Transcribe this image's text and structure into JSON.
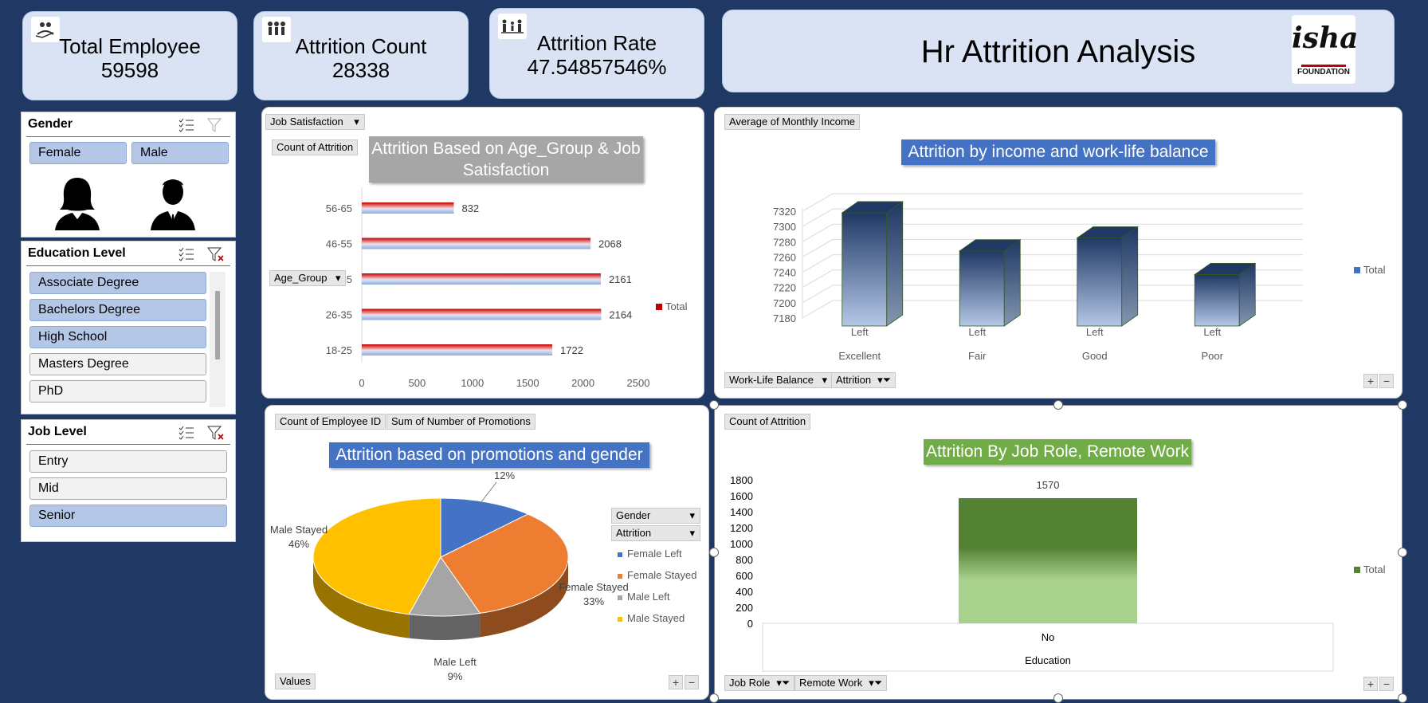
{
  "kpis": [
    {
      "title": "Total Employee",
      "value": "59598"
    },
    {
      "title": "Attrition Count",
      "value": "28338"
    },
    {
      "title": "Attrition Rate",
      "value": "47.54857546%"
    }
  ],
  "header": {
    "title": "Hr Attrition Analysis",
    "logo_text": "isha",
    "logo_sub": "FOUNDATION"
  },
  "slicers": {
    "gender": {
      "title": "Gender",
      "items": [
        {
          "label": "Female",
          "selected": true
        },
        {
          "label": "Male",
          "selected": true
        }
      ]
    },
    "education": {
      "title": "Education Level",
      "items": [
        {
          "label": "Associate Degree",
          "selected": true
        },
        {
          "label": "Bachelors Degree",
          "selected": true
        },
        {
          "label": "High School",
          "selected": true
        },
        {
          "label": "Masters Degree",
          "selected": false
        },
        {
          "label": "PhD",
          "selected": false
        }
      ]
    },
    "joblevel": {
      "title": "Job Level",
      "items": [
        {
          "label": "Entry",
          "selected": false
        },
        {
          "label": "Mid",
          "selected": false
        },
        {
          "label": "Senior",
          "selected": true
        }
      ]
    }
  },
  "chart1": {
    "field_buttons": [
      "Job Satisfaction",
      "Count of Attrition",
      "Age_Group"
    ],
    "title": "Attrition Based on Age_Group & Job Satisfaction",
    "legend": "Total"
  },
  "chart2": {
    "field_buttons": [
      "Average of Monthly Income",
      "Work-Life Balance",
      "Attrition"
    ],
    "title": "Attrition by income and work-life balance",
    "legend": "Total"
  },
  "chart3": {
    "field_buttons": [
      "Count of Employee ID",
      "Sum of Number of Promotions",
      "Gender",
      "Attrition",
      "Values"
    ],
    "title": "Attrition based on promotions and gender"
  },
  "chart4": {
    "field_buttons": [
      "Count of Attrition",
      "Job Role",
      "Remote Work"
    ],
    "title": "Attrition By Job Role, Remote Work",
    "legend": "Total"
  },
  "chart_data": [
    {
      "type": "bar",
      "orientation": "horizontal",
      "categories": [
        "18-25",
        "26-35",
        "36-45",
        "46-55",
        "56-65"
      ],
      "series": [
        {
          "name": "Total",
          "values": [
            1722,
            2164,
            2161,
            2068,
            832
          ]
        }
      ],
      "xlim": [
        0,
        2500
      ],
      "xticks": [
        "0",
        "500",
        "1000",
        "1500",
        "2000",
        "2500"
      ],
      "color": "#c00000"
    },
    {
      "type": "bar",
      "orientation": "vertical-3d",
      "categories": [
        [
          "Left",
          "Excellent"
        ],
        [
          "Left",
          "Fair"
        ],
        [
          "Left",
          "Good"
        ],
        [
          "Left",
          "Poor"
        ]
      ],
      "series": [
        {
          "name": "Total",
          "values": [
            7318,
            7268,
            7285,
            7237
          ]
        }
      ],
      "ylim": [
        7180,
        7320
      ],
      "yticks": [
        "7180",
        "7200",
        "7220",
        "7240",
        "7260",
        "7280",
        "7300",
        "7320"
      ],
      "color": "#1f3864"
    },
    {
      "type": "pie",
      "labels": [
        "Female Left",
        "Female Stayed",
        "Male Left",
        "Male Stayed"
      ],
      "values": [
        12,
        33,
        9,
        46
      ],
      "data_labels": [
        "12%",
        "33%",
        "9%",
        "46%"
      ],
      "outer_labels": [
        "",
        "Female Stayed",
        "Male Left",
        "Male Stayed"
      ],
      "colors": [
        "#4472c4",
        "#ed7d31",
        "#a5a5a5",
        "#ffc000"
      ]
    },
    {
      "type": "bar",
      "categories": [
        [
          "No",
          "Education"
        ]
      ],
      "series": [
        {
          "name": "Total",
          "values": [
            1570
          ]
        }
      ],
      "ylim": [
        0,
        1800
      ],
      "yticks": [
        "0",
        "200",
        "400",
        "600",
        "800",
        "1000",
        "1200",
        "1400",
        "1600",
        "1800"
      ],
      "color": "#548235"
    }
  ]
}
